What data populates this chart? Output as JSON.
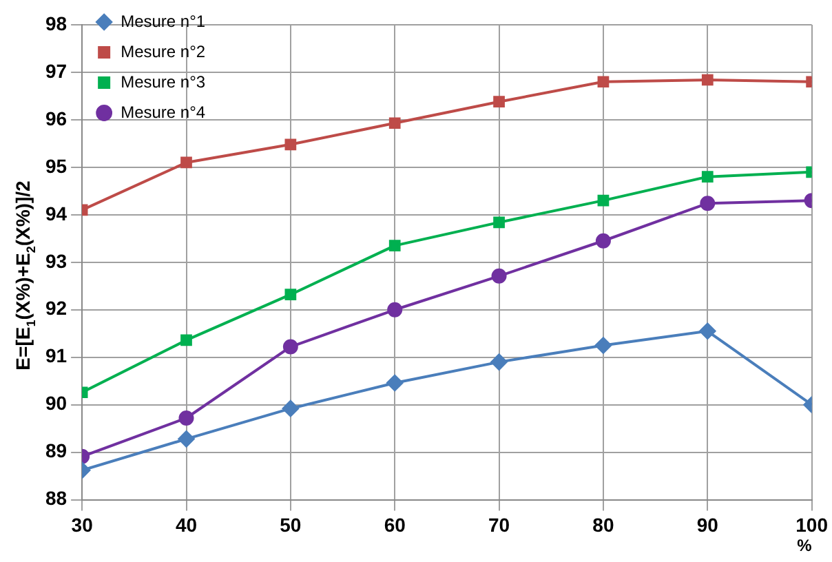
{
  "chart_data": {
    "type": "line",
    "xlabel": "%",
    "ylabel": "E=[E$_{1}$(X%)+E$_{2}$(X%)]/2",
    "x": [
      30,
      40,
      50,
      60,
      70,
      80,
      90,
      100
    ],
    "series": [
      {
        "name": "Mesure n°1",
        "color": "#4a7ebb",
        "marker": "diamond",
        "values": [
          88.62,
          89.28,
          89.92,
          90.46,
          90.9,
          91.25,
          91.55,
          90.0
        ]
      },
      {
        "name": "Mesure n°2",
        "color": "#be4b48",
        "marker": "square",
        "values": [
          94.1,
          95.1,
          95.48,
          95.93,
          96.38,
          96.8,
          96.84,
          96.8
        ]
      },
      {
        "name": "Mesure n°3",
        "color": "#00b050",
        "marker": "square",
        "values": [
          90.26,
          91.36,
          92.32,
          93.35,
          93.84,
          94.3,
          94.8,
          94.9
        ]
      },
      {
        "name": "Mesure n°4",
        "color": "#7030a0",
        "marker": "circle",
        "values": [
          88.91,
          89.72,
          91.22,
          92.0,
          92.71,
          93.45,
          94.24,
          94.3
        ]
      }
    ],
    "xlim": [
      30,
      100
    ],
    "xticks": [
      30,
      40,
      50,
      60,
      70,
      80,
      90,
      100
    ],
    "ylim": [
      88,
      98
    ],
    "yticks": [
      88,
      89,
      90,
      91,
      92,
      93,
      94,
      95,
      96,
      97,
      98
    ],
    "grid": true,
    "legend": "top left",
    "line_style": "solid"
  }
}
